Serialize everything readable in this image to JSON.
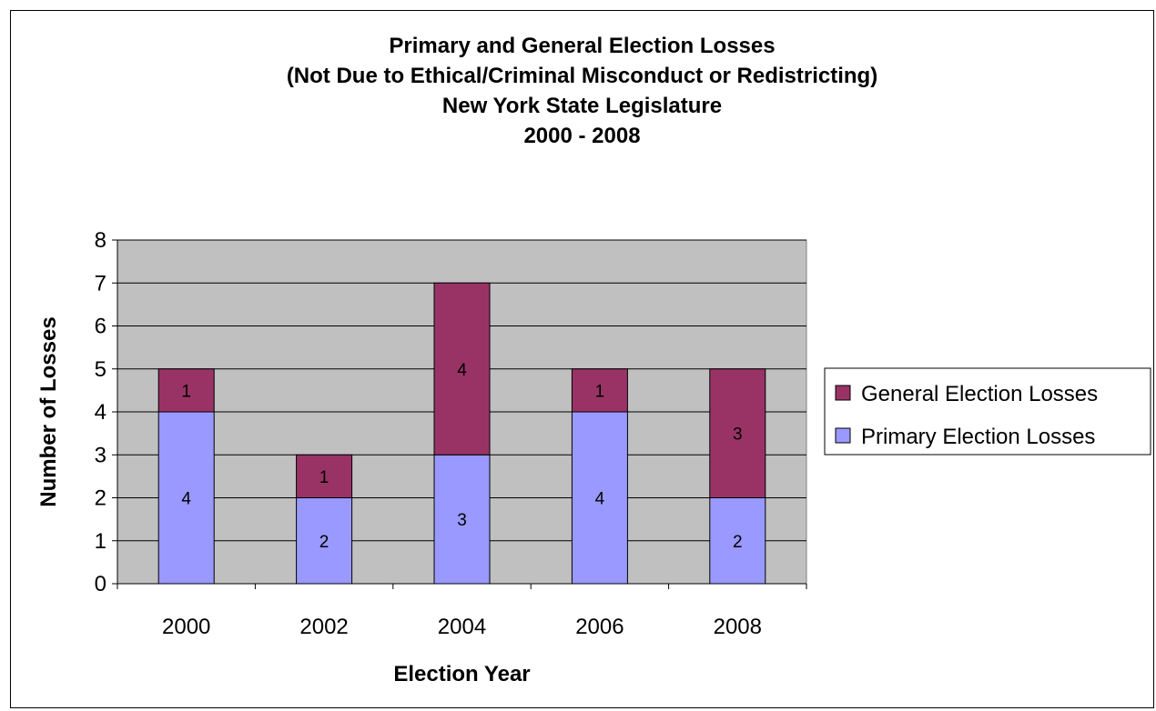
{
  "chart_data": {
    "type": "bar",
    "stacked": true,
    "title_lines": [
      "Primary and General Election Losses",
      "(Not Due to Ethical/Criminal Misconduct or Redistricting)",
      "New York State Legislature",
      "2000 - 2008"
    ],
    "xlabel": "Election Year",
    "ylabel": "Number of Losses",
    "categories": [
      "2000",
      "2002",
      "2004",
      "2006",
      "2008"
    ],
    "series": [
      {
        "name": "Primary Election Losses",
        "values": [
          4,
          2,
          3,
          4,
          2
        ],
        "color": "#9999FF"
      },
      {
        "name": "General Election Losses",
        "values": [
          1,
          1,
          4,
          1,
          3
        ],
        "color": "#993366"
      }
    ],
    "ylim": [
      0,
      8
    ],
    "yticks": [
      "0",
      "1",
      "2",
      "3",
      "4",
      "5",
      "6",
      "7",
      "8"
    ],
    "grid": true,
    "plot_background": "#C0C0C0",
    "legend_position": "right",
    "legend_order": [
      "General Election Losses",
      "Primary Election Losses"
    ]
  }
}
